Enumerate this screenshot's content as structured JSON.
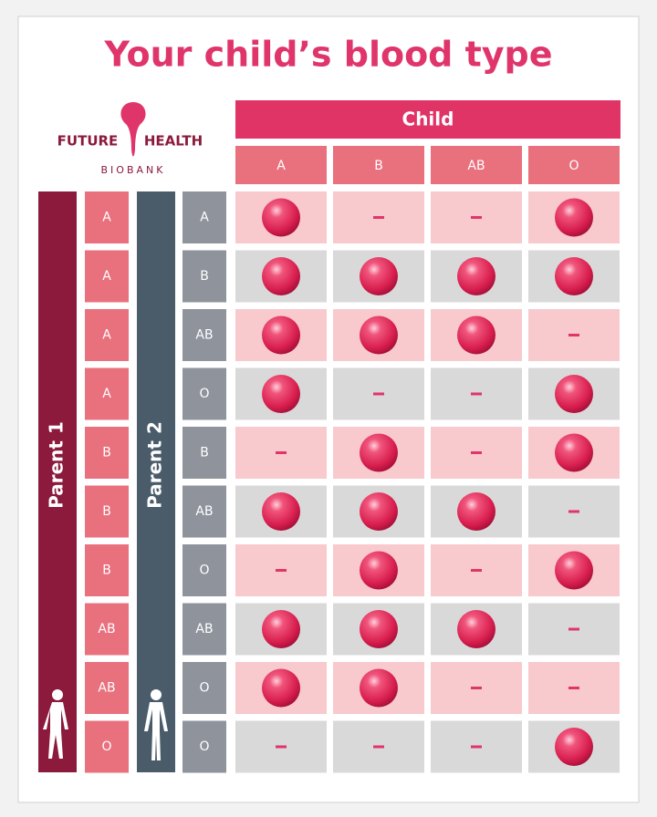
{
  "title": "Your child’s blood type",
  "logo": {
    "left": "FUTURE",
    "right": "HEALTH",
    "sub": "BIOBANK"
  },
  "child_header": "Child",
  "columns": [
    "A",
    "B",
    "AB",
    "O"
  ],
  "parent1_label": "Parent 1",
  "parent2_label": "Parent 2",
  "rows": [
    {
      "parent1": "A",
      "parent2": "A",
      "possible": [
        true,
        false,
        false,
        true
      ]
    },
    {
      "parent1": "A",
      "parent2": "B",
      "possible": [
        true,
        true,
        true,
        true
      ]
    },
    {
      "parent1": "A",
      "parent2": "AB",
      "possible": [
        true,
        true,
        true,
        false
      ]
    },
    {
      "parent1": "A",
      "parent2": "O",
      "possible": [
        true,
        false,
        false,
        true
      ]
    },
    {
      "parent1": "B",
      "parent2": "B",
      "possible": [
        false,
        true,
        false,
        true
      ]
    },
    {
      "parent1": "B",
      "parent2": "AB",
      "possible": [
        true,
        true,
        true,
        false
      ]
    },
    {
      "parent1": "B",
      "parent2": "O",
      "possible": [
        false,
        true,
        false,
        true
      ]
    },
    {
      "parent1": "AB",
      "parent2": "AB",
      "possible": [
        true,
        true,
        true,
        false
      ]
    },
    {
      "parent1": "AB",
      "parent2": "O",
      "possible": [
        true,
        true,
        false,
        false
      ]
    },
    {
      "parent1": "O",
      "parent2": "O",
      "possible": [
        false,
        false,
        false,
        true
      ]
    }
  ]
}
